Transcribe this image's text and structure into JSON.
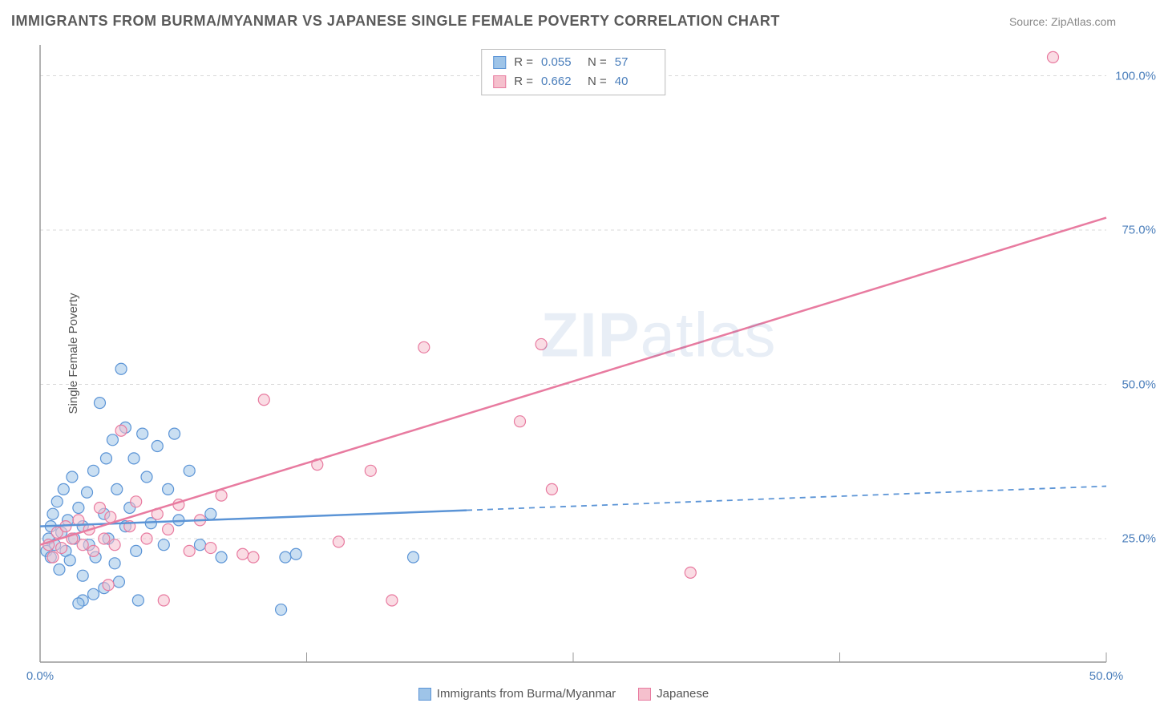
{
  "header": {
    "title": "IMMIGRANTS FROM BURMA/MYANMAR VS JAPANESE SINGLE FEMALE POVERTY CORRELATION CHART",
    "source": "Source: ZipAtlas.com"
  },
  "chart": {
    "type": "scatter",
    "ylabel": "Single Female Poverty",
    "xlim": [
      0,
      50
    ],
    "ylim": [
      5,
      105
    ],
    "xticks": [
      {
        "v": 0,
        "label": "0.0%"
      },
      {
        "v": 50,
        "label": "50.0%"
      }
    ],
    "yticks": [
      {
        "v": 25,
        "label": "25.0%"
      },
      {
        "v": 50,
        "label": "50.0%"
      },
      {
        "v": 75,
        "label": "75.0%"
      },
      {
        "v": 100,
        "label": "100.0%"
      }
    ],
    "xgrid_minor": [
      0,
      12.5,
      25,
      37.5,
      50
    ],
    "grid_color": "#d8d8d8",
    "axis_color": "#999999",
    "background": "#ffffff",
    "marker_radius": 7,
    "marker_opacity": 0.55,
    "series": [
      {
        "name": "Immigrants from Burma/Myanmar",
        "color_fill": "#9ec4e8",
        "color_stroke": "#5b94d6",
        "R": "0.055",
        "N": "57",
        "trend": {
          "x1": 0,
          "y1": 27.0,
          "x2": 50,
          "y2": 33.5,
          "solid_until_x": 20
        },
        "points": [
          [
            0.3,
            23
          ],
          [
            0.4,
            25
          ],
          [
            0.5,
            27
          ],
          [
            0.5,
            22
          ],
          [
            0.6,
            29
          ],
          [
            0.7,
            24
          ],
          [
            0.8,
            31
          ],
          [
            0.9,
            20
          ],
          [
            1.0,
            26
          ],
          [
            1.1,
            33
          ],
          [
            1.2,
            23
          ],
          [
            1.3,
            28
          ],
          [
            1.4,
            21.5
          ],
          [
            1.5,
            35
          ],
          [
            1.6,
            25
          ],
          [
            1.8,
            30
          ],
          [
            2.0,
            27
          ],
          [
            2.0,
            19
          ],
          [
            2.2,
            32.5
          ],
          [
            2.3,
            24
          ],
          [
            2.5,
            36
          ],
          [
            2.6,
            22
          ],
          [
            2.8,
            47
          ],
          [
            3.0,
            29
          ],
          [
            3.1,
            38
          ],
          [
            3.2,
            25
          ],
          [
            3.4,
            41
          ],
          [
            3.5,
            21
          ],
          [
            3.6,
            33
          ],
          [
            3.8,
            52.5
          ],
          [
            4.0,
            43
          ],
          [
            4.0,
            27
          ],
          [
            4.2,
            30
          ],
          [
            4.4,
            38
          ],
          [
            4.5,
            23
          ],
          [
            4.8,
            42
          ],
          [
            5.0,
            35
          ],
          [
            5.2,
            27.5
          ],
          [
            5.5,
            40
          ],
          [
            5.8,
            24
          ],
          [
            6.0,
            33
          ],
          [
            6.3,
            42
          ],
          [
            6.5,
            28
          ],
          [
            7.0,
            36
          ],
          [
            7.5,
            24
          ],
          [
            8.0,
            29
          ],
          [
            8.5,
            22
          ],
          [
            2.0,
            15
          ],
          [
            2.5,
            16
          ],
          [
            3.0,
            17
          ],
          [
            3.7,
            18
          ],
          [
            4.6,
            15
          ],
          [
            1.8,
            14.5
          ],
          [
            11.5,
            22
          ],
          [
            12.0,
            22.5
          ],
          [
            11.3,
            13.5
          ],
          [
            17.5,
            22
          ]
        ]
      },
      {
        "name": "Japanese",
        "color_fill": "#f5c0cd",
        "color_stroke": "#e87ba0",
        "R": "0.662",
        "N": "40",
        "trend": {
          "x1": 0,
          "y1": 24.0,
          "x2": 50,
          "y2": 77.0,
          "solid_until_x": 50
        },
        "points": [
          [
            0.4,
            24
          ],
          [
            0.6,
            22
          ],
          [
            0.8,
            26
          ],
          [
            1.0,
            23.5
          ],
          [
            1.2,
            27
          ],
          [
            1.5,
            25
          ],
          [
            1.8,
            28
          ],
          [
            2.0,
            24
          ],
          [
            2.3,
            26.5
          ],
          [
            2.5,
            23
          ],
          [
            2.8,
            30
          ],
          [
            3.0,
            25
          ],
          [
            3.3,
            28.5
          ],
          [
            3.5,
            24
          ],
          [
            3.8,
            42.5
          ],
          [
            4.2,
            27
          ],
          [
            4.5,
            31
          ],
          [
            5.0,
            25
          ],
          [
            5.5,
            29
          ],
          [
            6.0,
            26.5
          ],
          [
            6.5,
            30.5
          ],
          [
            7.0,
            23
          ],
          [
            7.5,
            28
          ],
          [
            8.0,
            23.5
          ],
          [
            8.5,
            32
          ],
          [
            9.5,
            22.5
          ],
          [
            10.0,
            22
          ],
          [
            10.5,
            47.5
          ],
          [
            13.0,
            37
          ],
          [
            14.0,
            24.5
          ],
          [
            15.5,
            36
          ],
          [
            16.5,
            15
          ],
          [
            18.0,
            56
          ],
          [
            22.5,
            44
          ],
          [
            24.0,
            33
          ],
          [
            23.5,
            56.5
          ],
          [
            30.5,
            19.5
          ],
          [
            5.8,
            15
          ],
          [
            3.2,
            17.5
          ],
          [
            47.5,
            103
          ]
        ]
      }
    ]
  },
  "bottom_legend": [
    {
      "label": "Immigrants from Burma/Myanmar",
      "fill": "#9ec4e8",
      "stroke": "#5b94d6"
    },
    {
      "label": "Japanese",
      "fill": "#f5c0cd",
      "stroke": "#e87ba0"
    }
  ],
  "watermark": {
    "bold": "ZIP",
    "rest": "atlas"
  }
}
